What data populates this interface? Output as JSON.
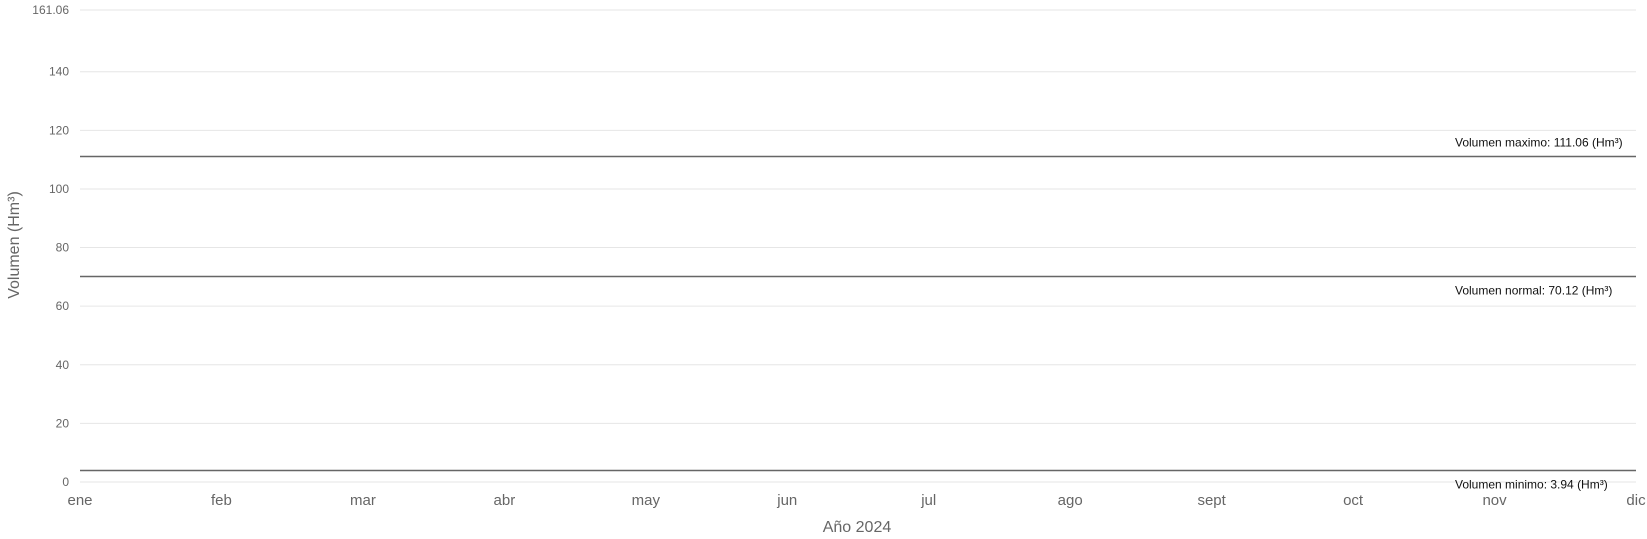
{
  "chart_data": {
    "type": "line",
    "xlabel": "Año 2024",
    "ylabel": "Volumen (Hm³)",
    "categories": [
      "ene",
      "feb",
      "mar",
      "abr",
      "may",
      "jun",
      "jul",
      "ago",
      "sept",
      "oct",
      "nov",
      "dic"
    ],
    "y_ticks": [
      0,
      20,
      40,
      60,
      80,
      100,
      120,
      140,
      161.06
    ],
    "ylim": [
      0,
      161.06
    ],
    "grid": true,
    "series": [],
    "reference_lines": [
      {
        "value": 111.06,
        "label": "Volumen maximo: 111.06 (Hm³)",
        "label_position": "above",
        "color": "#666666"
      },
      {
        "value": 70.12,
        "label": "Volumen normal: 70.12 (Hm³)",
        "label_position": "below",
        "color": "#666666"
      },
      {
        "value": 3.94,
        "label": "Volumen minimo: 3.94 (Hm³)",
        "label_position": "below",
        "color": "#666666"
      }
    ]
  }
}
